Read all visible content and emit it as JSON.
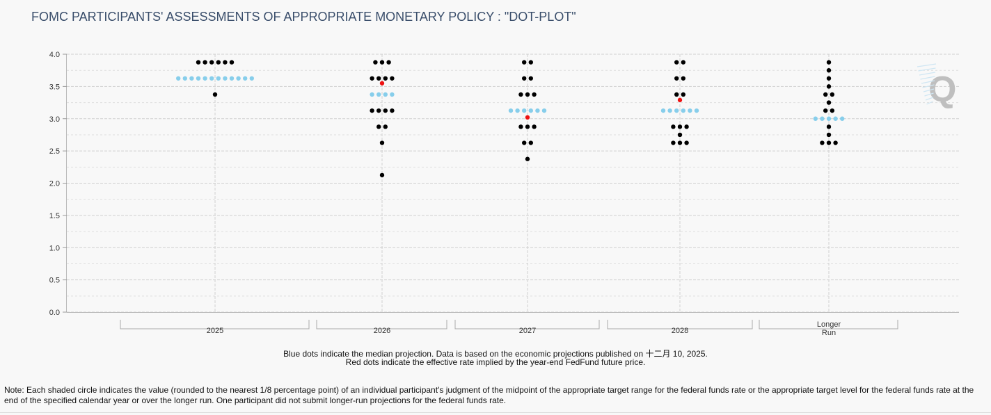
{
  "title": "FOMC PARTICIPANTS' ASSESSMENTS OF APPROPRIATE MONETARY POLICY : \"DOT-PLOT\"",
  "caption_line1": "Blue dots indicate the median projection. Data is based on the economic projections published on 十二月 10, 2025.",
  "caption_line2": "Red dots indicate the effective rate implied by the year-end FedFund future price.",
  "note": "Note: Each shaded circle indicates the value (rounded to the nearest 1/8 percentage point) of an individual participant's judgment of the midpoint of the appropriate target range for the federal funds rate or the appropriate target level for the federal funds rate at the end of the specified calendar year or over the longer run. One participant did not submit longer-run projections for the federal funds rate.",
  "colors": {
    "dot": "#000000",
    "median": "#87ceeb",
    "implied": "#ee1111",
    "title": "#3a4e6b",
    "watermark": "#bfbfbf"
  },
  "watermark": "Q",
  "chart_data": {
    "type": "scatter",
    "title": "FOMC PARTICIPANTS' ASSESSMENTS OF APPROPRIATE MONETARY POLICY : \"DOT-PLOT\"",
    "xlabel": "",
    "ylabel": "",
    "ylim": [
      0,
      4
    ],
    "yticks": [
      "0.0",
      "0.5",
      "1.0",
      "1.5",
      "2.0",
      "2.5",
      "3.0",
      "3.5",
      "4.0"
    ],
    "categories": [
      {
        "label": "2025",
        "dots": [
          {
            "rate": 3.875,
            "count": 6
          },
          {
            "rate": 3.375,
            "count": 1
          }
        ],
        "median": 3.625,
        "median_count": 12,
        "implied": null
      },
      {
        "label": "2026",
        "dots": [
          {
            "rate": 3.875,
            "count": 3
          },
          {
            "rate": 3.625,
            "count": 4
          },
          {
            "rate": 3.125,
            "count": 4
          },
          {
            "rate": 2.875,
            "count": 2
          },
          {
            "rate": 2.625,
            "count": 1
          },
          {
            "rate": 2.125,
            "count": 1
          }
        ],
        "median": 3.375,
        "median_count": 4,
        "implied": 3.55
      },
      {
        "label": "2027",
        "dots": [
          {
            "rate": 3.875,
            "count": 2
          },
          {
            "rate": 3.625,
            "count": 2
          },
          {
            "rate": 3.375,
            "count": 3
          },
          {
            "rate": 2.875,
            "count": 3
          },
          {
            "rate": 2.625,
            "count": 2
          },
          {
            "rate": 2.375,
            "count": 1
          }
        ],
        "median": 3.125,
        "median_count": 6,
        "implied": 3.02
      },
      {
        "label": "2028",
        "dots": [
          {
            "rate": 3.875,
            "count": 2
          },
          {
            "rate": 3.625,
            "count": 2
          },
          {
            "rate": 3.375,
            "count": 2
          },
          {
            "rate": 2.875,
            "count": 3
          },
          {
            "rate": 2.75,
            "count": 1
          },
          {
            "rate": 2.625,
            "count": 3
          }
        ],
        "median": 3.125,
        "median_count": 6,
        "implied": 3.29
      },
      {
        "label": "Longer Run",
        "label_lines": [
          "Longer",
          "Run"
        ],
        "dots": [
          {
            "rate": 3.875,
            "count": 1
          },
          {
            "rate": 3.75,
            "count": 1
          },
          {
            "rate": 3.625,
            "count": 1
          },
          {
            "rate": 3.5,
            "count": 1
          },
          {
            "rate": 3.375,
            "count": 2
          },
          {
            "rate": 3.25,
            "count": 1
          },
          {
            "rate": 3.125,
            "count": 2
          },
          {
            "rate": 2.875,
            "count": 1
          },
          {
            "rate": 2.75,
            "count": 1
          },
          {
            "rate": 2.625,
            "count": 3
          }
        ],
        "median": 3.0,
        "median_count": 5,
        "implied": null
      }
    ]
  }
}
